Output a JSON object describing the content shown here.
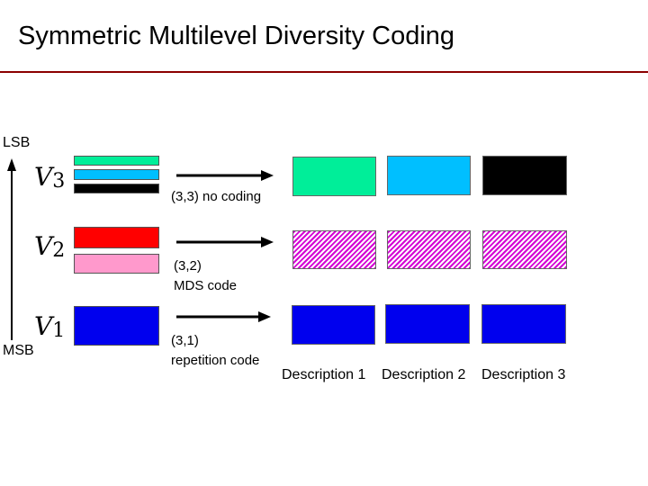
{
  "title": "Symmetric Multilevel Diversity Coding",
  "axis": {
    "top_label": "LSB",
    "bottom_label": "MSB"
  },
  "levels": [
    {
      "var": "V",
      "sub": "3",
      "scheme_line1": "(3,3) no coding",
      "scheme_line2": ""
    },
    {
      "var": "V",
      "sub": "2",
      "scheme_line1": "(3,2)",
      "scheme_line2": "MDS code"
    },
    {
      "var": "V",
      "sub": "1",
      "scheme_line1": "(3,1)",
      "scheme_line2": "repetition code"
    }
  ],
  "descriptions": [
    "Description 1",
    "Description 2",
    "Description 3"
  ],
  "colors": {
    "title_rule": "#8b0000",
    "v3_bits": [
      "#00ee99",
      "#00bfff",
      "#000000"
    ],
    "v2_bits": [
      "#ff0000",
      "#ff99cc"
    ],
    "v1_bits": [
      "#0000ee"
    ],
    "mds_hatch": "#d400d4"
  }
}
